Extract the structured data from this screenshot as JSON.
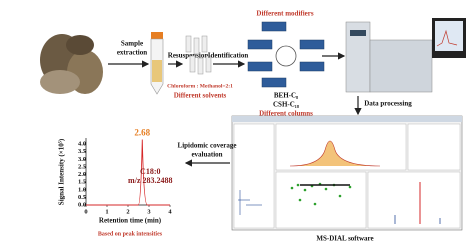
{
  "steps": {
    "sample_extraction": [
      "Sample",
      "extraction"
    ],
    "resuspension": "Resuspension",
    "identification": "Identification",
    "data_processing": "Data processing",
    "coverage": [
      "Lipidomic coverage",
      "evaluation"
    ]
  },
  "solvent": {
    "ratio": "Chloroform : Methanol=2:1",
    "caption": "Different solvents"
  },
  "lc": {
    "modifiers": "Different modifiers",
    "column_1": "BEH-C₈",
    "column_2": "CSH-C₁₈",
    "columns": "Different columns"
  },
  "software": "MS-DIAL software",
  "chromatogram": {
    "y_label": "Signal Intensity (×10⁵)",
    "x_label": "Retention time (min)",
    "xlim": [
      0,
      4
    ],
    "xticks": [
      0,
      1,
      2,
      3,
      4
    ],
    "ylim": [
      0,
      4.4
    ],
    "yticks": [
      {
        "value": 0,
        "label": "0.0"
      },
      {
        "value": 0.5,
        "label": "0.5"
      },
      {
        "value": 1,
        "label": "1.0"
      },
      {
        "value": 1.5,
        "label": "1.5"
      },
      {
        "value": 2,
        "label": "2.0"
      },
      {
        "value": 2.5,
        "label": "2.5"
      },
      {
        "value": 3,
        "label": "3.0"
      },
      {
        "value": 3.5,
        "label": "3.5"
      },
      {
        "value": 4,
        "label": "4.0"
      }
    ],
    "peak": {
      "x": 2.68,
      "value": 4.3,
      "lipid": "C18:0",
      "mz": "m/z 283.2488"
    },
    "color": "#d62728",
    "caption": "Based on peak intensities"
  }
}
